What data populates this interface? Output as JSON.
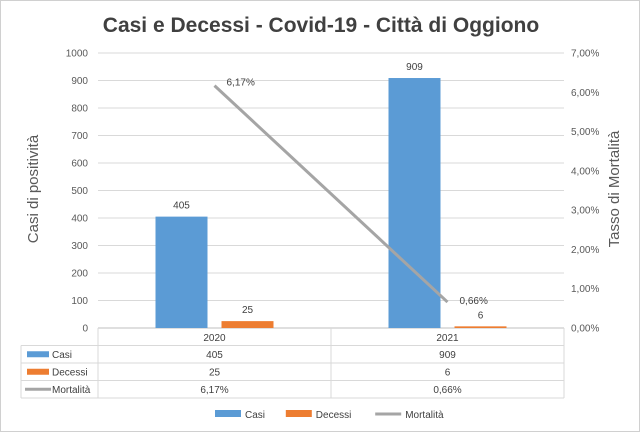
{
  "chart_data": {
    "type": "bar",
    "title": "Casi e Decessi - Covid-19 - Città di Oggiono",
    "categories": [
      "2020",
      "2021"
    ],
    "ylabel": "Casi di positività",
    "y2label": "Tasso di  Mortalità",
    "ylim": [
      0,
      1000
    ],
    "y2lim": [
      0,
      0.07
    ],
    "y_ticks": [
      "0",
      "100",
      "200",
      "300",
      "400",
      "500",
      "600",
      "700",
      "800",
      "900",
      "1000"
    ],
    "y2_ticks": [
      "0,00%",
      "1,00%",
      "2,00%",
      "3,00%",
      "4,00%",
      "5,00%",
      "6,00%",
      "7,00%"
    ],
    "series": [
      {
        "name": "Casi",
        "type": "bar",
        "axis": "left",
        "color": "#5B9BD5",
        "values": [
          405,
          909
        ],
        "labels": [
          "405",
          "909"
        ]
      },
      {
        "name": "Decessi",
        "type": "bar",
        "axis": "left",
        "color": "#ED7D31",
        "values": [
          25,
          6
        ],
        "labels": [
          "25",
          "6"
        ]
      },
      {
        "name": "Mortalità",
        "type": "line",
        "axis": "right",
        "color": "#A5A5A5",
        "values": [
          0.0617,
          0.0066
        ],
        "labels": [
          "6,17%",
          "0,66%"
        ]
      }
    ],
    "grid": "horizontal",
    "legend": "bottom",
    "data_table": true
  }
}
